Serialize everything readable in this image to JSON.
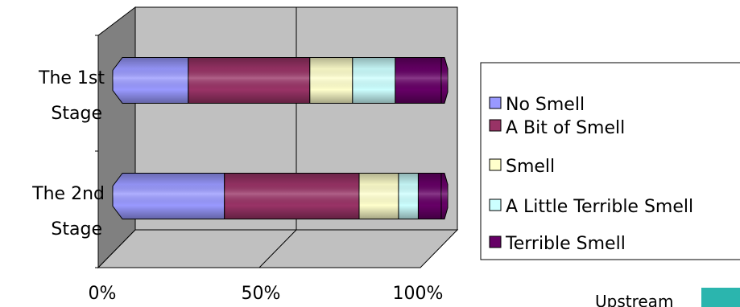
{
  "chart_data": {
    "type": "bar",
    "orientation": "horizontal",
    "stacked": "percent",
    "style": "3d-cylinder",
    "categories": [
      "The 1st Stage",
      "The 2nd Stage"
    ],
    "category_lines": [
      [
        "The 1st",
        "Stage"
      ],
      [
        "The 2nd",
        "Stage"
      ]
    ],
    "series": [
      {
        "name": "No Smell",
        "values": [
          23,
          34
        ],
        "color": "#9999FF"
      },
      {
        "name": "A Bit of Smell",
        "values": [
          37,
          41
        ],
        "color": "#993366"
      },
      {
        "name": "Smell",
        "values": [
          13,
          12
        ],
        "color": "#FFFFCC"
      },
      {
        "name": "A Little Terrible Smell",
        "values": [
          13,
          6
        ],
        "color": "#CCFFFF"
      },
      {
        "name": "Terrible Smell",
        "values": [
          14,
          7
        ],
        "color": "#660066"
      }
    ],
    "x_ticks": [
      "0%",
      "50%",
      "100%"
    ],
    "xlim": [
      0,
      100
    ],
    "grid": true,
    "legend_position": "right"
  },
  "footer": {
    "text": "Upstream",
    "accent_color": "#2BB5AE"
  }
}
